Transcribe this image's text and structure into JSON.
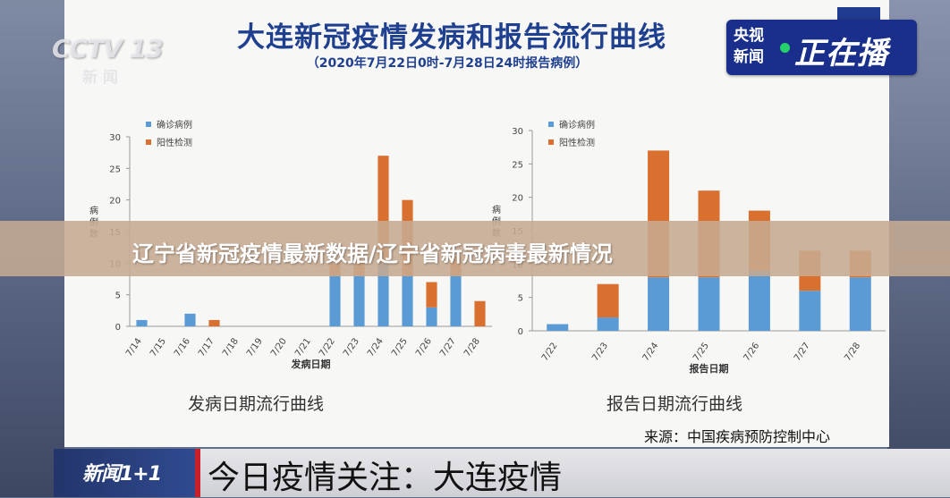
{
  "broadcast": {
    "logo": "CCTV 13",
    "logo_sub": "新闻",
    "live_badge_line1": "央视",
    "live_badge_line2": "新闻",
    "live_badge_main": "正在播",
    "banner_title": "辽宁省新冠疫情最新数据/辽宁省新冠病毒最新情况",
    "lower_logo": "新闻1+1",
    "lower_third": "今日疫情关注：大连疫情",
    "colors": {
      "live_badge": "#1a2f8c",
      "live_dot": "#26d06b",
      "lower_bar": "#c8202a"
    }
  },
  "slide": {
    "title": "大连新冠疫情发病和报告流行曲线",
    "subtitle": "（2020年7月22日0时-7月28日24时报告病例）",
    "source": "来源：中国疾病预防控制中心"
  },
  "chart_data": [
    {
      "type": "bar",
      "stacked": true,
      "caption": "发病日期流行曲线",
      "xlabel": "发病日期",
      "ylabel": "病例数",
      "ylim": [
        0,
        30
      ],
      "yticks": [
        0,
        5,
        10,
        15,
        20,
        25,
        30
      ],
      "legend_position": "top-left",
      "categories": [
        "7/14",
        "7/15",
        "7/16",
        "7/17",
        "7/18",
        "7/19",
        "7/20",
        "7/21",
        "7/22",
        "7/23",
        "7/24",
        "7/25",
        "7/26",
        "7/27",
        "7/28"
      ],
      "series": [
        {
          "name": "确诊病例",
          "color": "#5b9bd5",
          "values": [
            1,
            0,
            2,
            0,
            0,
            0,
            0,
            0,
            8,
            8,
            10,
            8,
            3,
            8,
            0
          ]
        },
        {
          "name": "阳性检测",
          "color": "#d9702f",
          "values": [
            0,
            0,
            0,
            1,
            0,
            0,
            0,
            0,
            2,
            2,
            17,
            12,
            4,
            3,
            4
          ]
        }
      ]
    },
    {
      "type": "bar",
      "stacked": true,
      "caption": "报告日期流行曲线",
      "xlabel": "报告日期",
      "ylabel": "病例数",
      "ylim": [
        0,
        30
      ],
      "yticks": [
        0,
        5,
        10,
        15,
        20,
        25,
        30
      ],
      "legend_position": "top-left",
      "categories": [
        "7/22",
        "7/23",
        "7/24",
        "7/25",
        "7/26",
        "7/27",
        "7/28"
      ],
      "series": [
        {
          "name": "确诊病例",
          "color": "#5b9bd5",
          "values": [
            1,
            2,
            8,
            8,
            9,
            6,
            8
          ]
        },
        {
          "name": "阳性检测",
          "color": "#d9702f",
          "values": [
            0,
            5,
            19,
            13,
            9,
            6,
            4
          ]
        }
      ]
    }
  ]
}
